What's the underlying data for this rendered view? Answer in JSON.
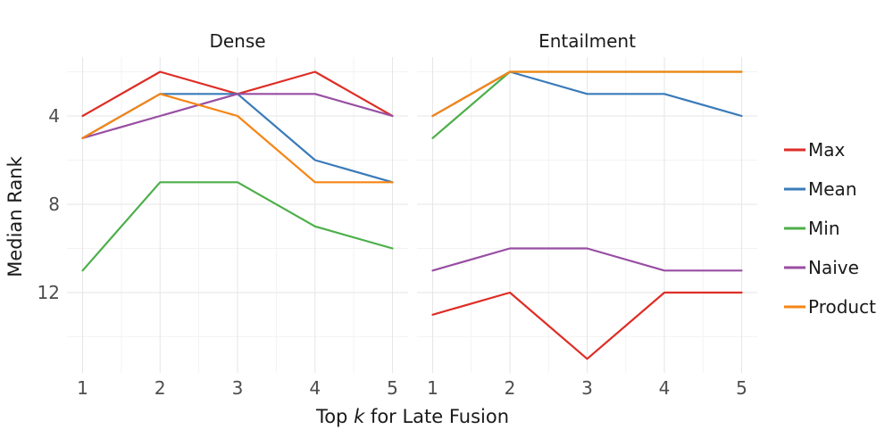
{
  "chart_data": {
    "type": "line",
    "xlabel_prefix": "Top ",
    "xlabel_italic": "k",
    "xlabel_suffix": " for Late Fusion",
    "ylabel": "Median Rank",
    "y_reversed": true,
    "ylim": [
      1.0,
      15.5
    ],
    "x": [
      1,
      2,
      3,
      4,
      5
    ],
    "x_ticks": [
      1,
      2,
      3,
      4,
      5
    ],
    "y_ticks": [
      4,
      8,
      12
    ],
    "legend_position": "right",
    "panels": [
      {
        "title": "Dense",
        "series": [
          {
            "name": "Max",
            "values": [
              4,
              2,
              3,
              2,
              4
            ]
          },
          {
            "name": "Mean",
            "values": [
              5,
              3,
              3,
              6,
              7
            ]
          },
          {
            "name": "Min",
            "values": [
              11,
              7,
              7,
              9,
              10
            ]
          },
          {
            "name": "Naive",
            "values": [
              5,
              4,
              3,
              3,
              4
            ]
          },
          {
            "name": "Product",
            "values": [
              5,
              3,
              4,
              7,
              7
            ]
          }
        ]
      },
      {
        "title": "Entailment",
        "series": [
          {
            "name": "Max",
            "values": [
              13,
              12,
              15,
              12,
              12
            ]
          },
          {
            "name": "Mean",
            "values": [
              4,
              2,
              3,
              3,
              4
            ]
          },
          {
            "name": "Min",
            "values": [
              5,
              2,
              2,
              2,
              2
            ]
          },
          {
            "name": "Naive",
            "values": [
              11,
              10,
              10,
              11,
              11
            ]
          },
          {
            "name": "Product",
            "values": [
              4,
              2,
              2,
              2,
              2
            ]
          }
        ]
      }
    ],
    "legend": [
      "Max",
      "Mean",
      "Min",
      "Naive",
      "Product"
    ],
    "colors": {
      "Max": "#de2d26",
      "Mean": "#3a7bb8",
      "Min": "#4daf4a",
      "Naive": "#984ea3",
      "Product": "#f58514"
    }
  }
}
